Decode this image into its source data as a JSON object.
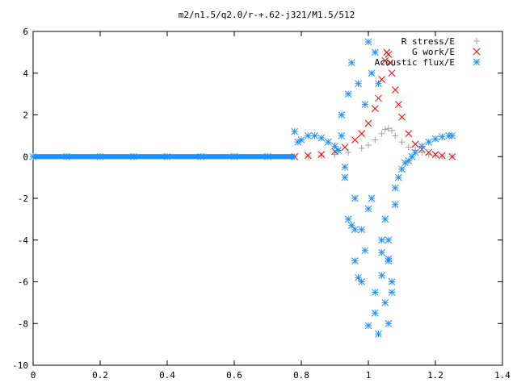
{
  "chart_data": {
    "type": "scatter",
    "title": "m2/n1.5/q2.0/r-+.62-j321/M1.5/512",
    "xlim": [
      0,
      1.4
    ],
    "ylim": [
      -10,
      6
    ],
    "x_ticks": [
      "0",
      "0.2",
      "0.4",
      "0.6",
      "0.8",
      "1",
      "1.2",
      "1.4"
    ],
    "y_ticks": [
      "6",
      "4",
      "2",
      "0",
      "-2",
      "-4",
      "-6",
      "-8",
      "-10"
    ],
    "legend_position": "top-right",
    "grid": false,
    "series": [
      {
        "name": "R stress/E",
        "marker": "plus",
        "color": "#a0a0a0",
        "x": [
          0.0,
          0.1,
          0.2,
          0.3,
          0.4,
          0.5,
          0.6,
          0.7,
          0.78,
          0.82,
          0.86,
          0.9,
          0.94,
          0.98,
          1.0,
          1.02,
          1.04,
          1.05,
          1.06,
          1.07,
          1.08,
          1.1,
          1.12,
          1.14,
          1.16,
          1.18,
          1.2,
          1.22,
          1.25
        ],
        "y": [
          0,
          0,
          0,
          0,
          0,
          0,
          0,
          0,
          0,
          0.02,
          0.05,
          0.1,
          0.2,
          0.4,
          0.55,
          0.8,
          1.1,
          1.3,
          1.35,
          1.25,
          1.0,
          0.7,
          0.45,
          0.3,
          0.2,
          0.1,
          0.05,
          0.02,
          0.0
        ]
      },
      {
        "name": "G work/E",
        "marker": "cross",
        "color": "#ff0000",
        "x": [
          0.78,
          0.82,
          0.86,
          0.9,
          0.93,
          0.96,
          0.98,
          1.0,
          1.02,
          1.03,
          1.04,
          1.05,
          1.055,
          1.06,
          1.065,
          1.07,
          1.08,
          1.09,
          1.1,
          1.12,
          1.14,
          1.16,
          1.18,
          1.2,
          1.22,
          1.25
        ],
        "y": [
          0.0,
          0.05,
          0.1,
          0.25,
          0.45,
          0.8,
          1.1,
          1.6,
          2.3,
          2.8,
          3.7,
          4.6,
          5.0,
          4.9,
          4.5,
          4.0,
          3.2,
          2.5,
          1.9,
          1.1,
          0.6,
          0.35,
          0.2,
          0.1,
          0.05,
          0.0
        ]
      },
      {
        "name": "Acoustic flux/E",
        "marker": "star",
        "color": "#1e90ff",
        "x": [
          0.0,
          0.1,
          0.2,
          0.3,
          0.4,
          0.5,
          0.6,
          0.7,
          0.78,
          0.79,
          0.8,
          0.82,
          0.84,
          0.86,
          0.88,
          0.9,
          0.91,
          0.92,
          0.93,
          0.94,
          0.95,
          0.96,
          0.97,
          0.98,
          0.99,
          1.0,
          1.01,
          1.02,
          1.03,
          1.04,
          1.05,
          1.06,
          1.07,
          1.08,
          1.09,
          1.1,
          1.11,
          1.12,
          1.13,
          1.14,
          1.16,
          1.18,
          1.2,
          1.22,
          1.24,
          1.25,
          0.94,
          0.96,
          0.98,
          1.0,
          1.02,
          1.03,
          1.05,
          1.06,
          1.07,
          0.93,
          0.95,
          0.97,
          0.99,
          1.01,
          1.04,
          1.06,
          0.92,
          0.96,
          1.0,
          1.02,
          1.04,
          1.06,
          1.08
        ],
        "y": [
          0,
          0,
          0,
          0,
          0,
          0,
          0,
          0,
          1.2,
          0.7,
          0.8,
          1.0,
          1.0,
          0.9,
          0.7,
          0.5,
          0.3,
          1.0,
          -0.5,
          3.0,
          4.5,
          -2.0,
          3.5,
          -3.5,
          2.5,
          5.5,
          4.0,
          -6.5,
          -8.5,
          -4.0,
          -3.0,
          -5.0,
          -6.5,
          -1.5,
          -1.0,
          -0.6,
          -0.3,
          -0.2,
          0.0,
          0.2,
          0.5,
          0.7,
          0.85,
          0.95,
          1.0,
          1.0,
          -3.0,
          -5.0,
          -6.0,
          -2.5,
          5.0,
          3.5,
          -7.0,
          -8.0,
          -6.0,
          -1.0,
          -3.3,
          -5.8,
          -4.5,
          -2.0,
          -5.7,
          -4.0,
          2.0,
          -3.5,
          -8.1,
          -7.5,
          -4.6,
          -4.9,
          -2.3
        ]
      }
    ]
  }
}
